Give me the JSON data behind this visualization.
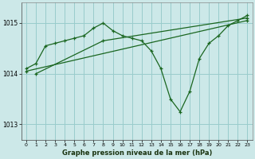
{
  "bg_color": "#cce8e8",
  "grid_color": "#99cccc",
  "line_color": "#1a6620",
  "title": "Graphe pression niveau de la mer (hPa)",
  "xlim": [
    -0.5,
    23.5
  ],
  "ylim": [
    1012.7,
    1015.4
  ],
  "yticks": [
    1013,
    1014,
    1015
  ],
  "xticks": [
    0,
    1,
    2,
    3,
    4,
    5,
    6,
    7,
    8,
    9,
    10,
    11,
    12,
    13,
    14,
    15,
    16,
    17,
    18,
    19,
    20,
    21,
    22,
    23
  ],
  "series0_x": [
    0,
    1,
    2,
    3,
    4,
    5,
    6,
    7,
    8,
    9,
    10,
    11,
    12,
    13,
    14,
    15,
    16,
    17,
    18,
    19,
    20,
    21,
    22,
    23
  ],
  "series0_y": [
    1014.1,
    1014.2,
    1014.55,
    1014.6,
    1014.65,
    1014.7,
    1014.75,
    1014.9,
    1015.0,
    1014.85,
    1014.75,
    1014.7,
    1014.65,
    1014.45,
    1014.1,
    1013.5,
    1013.25,
    1013.65,
    1014.3,
    1014.6,
    1014.75,
    1014.95,
    1015.05,
    1015.15
  ],
  "series1_x": [
    1,
    8,
    23
  ],
  "series1_y": [
    1014.0,
    1014.65,
    1015.1
  ],
  "series2_x": [
    0,
    23
  ],
  "series2_y": [
    1014.05,
    1015.05
  ]
}
